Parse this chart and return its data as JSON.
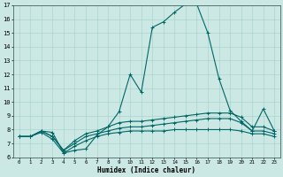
{
  "xlabel": "Humidex (Indice chaleur)",
  "bg_color": "#cce8e4",
  "grid_color": "#aad4ce",
  "line_color": "#006666",
  "x": [
    0,
    1,
    2,
    3,
    4,
    5,
    6,
    7,
    8,
    9,
    10,
    11,
    12,
    13,
    14,
    15,
    16,
    17,
    18,
    19,
    20,
    21,
    22,
    23
  ],
  "series": [
    [
      7.5,
      7.5,
      7.9,
      7.8,
      6.3,
      6.5,
      6.6,
      7.6,
      8.2,
      9.3,
      12.0,
      10.7,
      15.4,
      15.8,
      16.5,
      17.1,
      17.1,
      15.0,
      11.7,
      9.4,
      8.6,
      7.9,
      9.5,
      7.9
    ],
    [
      7.5,
      7.5,
      7.9,
      7.5,
      6.5,
      7.2,
      7.7,
      7.9,
      8.2,
      8.5,
      8.6,
      8.6,
      8.7,
      8.8,
      8.9,
      9.0,
      9.1,
      9.2,
      9.2,
      9.2,
      8.9,
      8.2,
      8.2,
      7.9
    ],
    [
      7.5,
      7.5,
      7.9,
      7.5,
      6.5,
      7.0,
      7.5,
      7.7,
      7.9,
      8.1,
      8.2,
      8.2,
      8.3,
      8.4,
      8.5,
      8.6,
      8.7,
      8.8,
      8.8,
      8.8,
      8.5,
      7.9,
      7.9,
      7.7
    ],
    [
      7.5,
      7.5,
      7.8,
      7.3,
      6.3,
      6.8,
      7.2,
      7.5,
      7.7,
      7.8,
      7.9,
      7.9,
      7.9,
      7.9,
      8.0,
      8.0,
      8.0,
      8.0,
      8.0,
      8.0,
      7.9,
      7.7,
      7.7,
      7.5
    ]
  ],
  "ylim": [
    6,
    17
  ],
  "xlim": [
    -0.5,
    23.5
  ],
  "yticks": [
    6,
    7,
    8,
    9,
    10,
    11,
    12,
    13,
    14,
    15,
    16,
    17
  ],
  "xticks": [
    0,
    1,
    2,
    3,
    4,
    5,
    6,
    7,
    8,
    9,
    10,
    11,
    12,
    13,
    14,
    15,
    16,
    17,
    18,
    19,
    20,
    21,
    22,
    23
  ]
}
